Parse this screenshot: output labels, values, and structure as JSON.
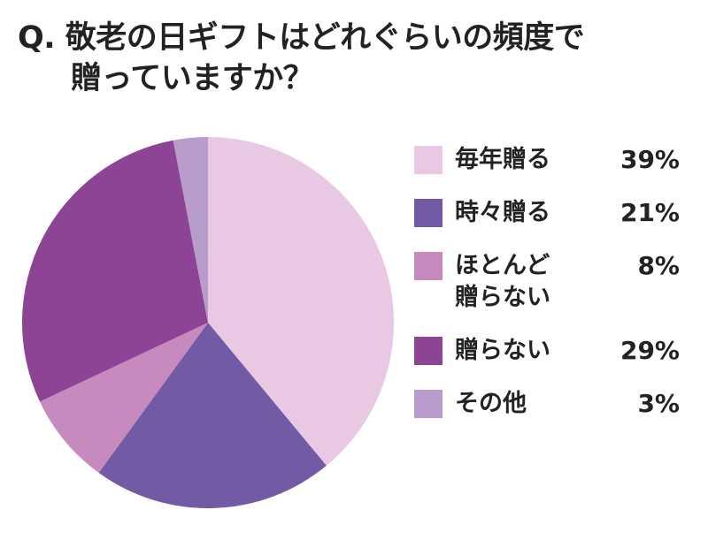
{
  "title": {
    "line1": "Q. 敬老の日ギフトはどれぐらいの頻度で",
    "line2": "贈っていますか？"
  },
  "chart_data": {
    "type": "pie",
    "title": "Q. 敬老の日ギフトはどれぐらいの頻度で贈っていますか？",
    "start": "12 o'clock",
    "direction": "clockwise",
    "legend_position": "right",
    "slices": [
      {
        "label": "毎年贈る",
        "label_lines": [
          "毎年贈る"
        ],
        "value": 39,
        "display": "39%",
        "color": "#e8c8e2"
      },
      {
        "label": "時々贈る",
        "label_lines": [
          "時々贈る"
        ],
        "value": 21,
        "display": "21%",
        "color": "#735aa5"
      },
      {
        "label": "ほとんど贈らない",
        "label_lines": [
          "ほとんど",
          "贈らない"
        ],
        "value": 8,
        "display": "8%",
        "color": "#c68abe"
      },
      {
        "label": "贈らない",
        "label_lines": [
          "贈らない"
        ],
        "value": 29,
        "display": "29%",
        "color": "#8d4495"
      },
      {
        "label": "その他",
        "label_lines": [
          "その他"
        ],
        "value": 3,
        "display": "3%",
        "color": "#b89ccb"
      }
    ]
  }
}
